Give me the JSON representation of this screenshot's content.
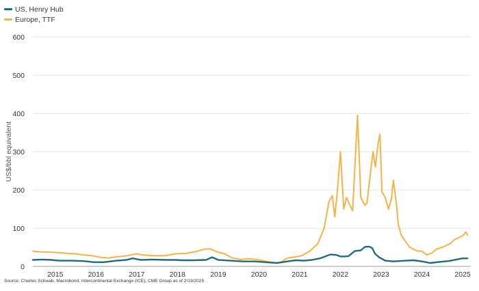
{
  "chart_data": {
    "type": "line",
    "ylabel": "US$/bbl equivalent",
    "ylim": [
      0,
      600
    ],
    "y_ticks": [
      "0",
      "100",
      "200",
      "300",
      "400",
      "500",
      "600"
    ],
    "x_ticks": [
      "2015",
      "2016",
      "2017",
      "2018",
      "2019",
      "2020",
      "2021",
      "2022",
      "2023",
      "2024",
      "2025"
    ],
    "grid": "horizontal",
    "legend_position": "top-left",
    "series": [
      {
        "name": "US, Henry Hub",
        "color": "#1f6b7c",
        "points": [
          [
            2014.45,
            17
          ],
          [
            2014.7,
            18
          ],
          [
            2014.9,
            17
          ],
          [
            2015.1,
            15
          ],
          [
            2015.4,
            15
          ],
          [
            2015.7,
            14
          ],
          [
            2015.95,
            11
          ],
          [
            2016.2,
            11
          ],
          [
            2016.5,
            15
          ],
          [
            2016.75,
            17
          ],
          [
            2016.9,
            21
          ],
          [
            2017.1,
            17
          ],
          [
            2017.4,
            18
          ],
          [
            2017.7,
            17
          ],
          [
            2017.95,
            17
          ],
          [
            2018.1,
            16
          ],
          [
            2018.4,
            16
          ],
          [
            2018.7,
            17
          ],
          [
            2018.85,
            24
          ],
          [
            2019.0,
            17
          ],
          [
            2019.3,
            15
          ],
          [
            2019.6,
            13
          ],
          [
            2019.9,
            13
          ],
          [
            2020.15,
            11
          ],
          [
            2020.45,
            9
          ],
          [
            2020.7,
            13
          ],
          [
            2020.9,
            16
          ],
          [
            2021.1,
            15
          ],
          [
            2021.3,
            17
          ],
          [
            2021.5,
            21
          ],
          [
            2021.75,
            31
          ],
          [
            2021.9,
            30
          ],
          [
            2022.0,
            26
          ],
          [
            2022.1,
            26
          ],
          [
            2022.2,
            27
          ],
          [
            2022.35,
            40
          ],
          [
            2022.5,
            42
          ],
          [
            2022.6,
            51
          ],
          [
            2022.7,
            52
          ],
          [
            2022.78,
            48
          ],
          [
            2022.85,
            33
          ],
          [
            2022.95,
            24
          ],
          [
            2023.1,
            15
          ],
          [
            2023.3,
            13
          ],
          [
            2023.6,
            15
          ],
          [
            2023.8,
            16
          ],
          [
            2024.0,
            13
          ],
          [
            2024.2,
            9
          ],
          [
            2024.45,
            12
          ],
          [
            2024.65,
            14
          ],
          [
            2024.85,
            18
          ],
          [
            2025.0,
            21
          ],
          [
            2025.12,
            21
          ]
        ]
      },
      {
        "name": "Europe, TTF",
        "color": "#f5b245",
        "points": [
          [
            2014.45,
            40
          ],
          [
            2014.65,
            38
          ],
          [
            2014.9,
            37
          ],
          [
            2015.1,
            36
          ],
          [
            2015.3,
            34
          ],
          [
            2015.5,
            33
          ],
          [
            2015.7,
            30
          ],
          [
            2015.9,
            28
          ],
          [
            2016.1,
            24
          ],
          [
            2016.3,
            22
          ],
          [
            2016.5,
            25
          ],
          [
            2016.7,
            27
          ],
          [
            2016.85,
            30
          ],
          [
            2017.0,
            33
          ],
          [
            2017.15,
            30
          ],
          [
            2017.4,
            28
          ],
          [
            2017.7,
            28
          ],
          [
            2017.95,
            33
          ],
          [
            2018.2,
            34
          ],
          [
            2018.5,
            40
          ],
          [
            2018.65,
            45
          ],
          [
            2018.8,
            46
          ],
          [
            2018.95,
            39
          ],
          [
            2019.15,
            33
          ],
          [
            2019.35,
            22
          ],
          [
            2019.55,
            18
          ],
          [
            2019.75,
            20
          ],
          [
            2019.95,
            18
          ],
          [
            2020.15,
            14
          ],
          [
            2020.4,
            9
          ],
          [
            2020.55,
            12
          ],
          [
            2020.7,
            22
          ],
          [
            2020.9,
            25
          ],
          [
            2021.05,
            28
          ],
          [
            2021.25,
            40
          ],
          [
            2021.45,
            60
          ],
          [
            2021.6,
            100
          ],
          [
            2021.72,
            170
          ],
          [
            2021.8,
            185
          ],
          [
            2021.86,
            130
          ],
          [
            2021.92,
            190
          ],
          [
            2022.0,
            300
          ],
          [
            2022.08,
            150
          ],
          [
            2022.15,
            180
          ],
          [
            2022.3,
            145
          ],
          [
            2022.42,
            395
          ],
          [
            2022.5,
            180
          ],
          [
            2022.6,
            160
          ],
          [
            2022.65,
            165
          ],
          [
            2022.72,
            230
          ],
          [
            2022.8,
            300
          ],
          [
            2022.86,
            260
          ],
          [
            2022.92,
            320
          ],
          [
            2022.97,
            345
          ],
          [
            2023.02,
            195
          ],
          [
            2023.1,
            180
          ],
          [
            2023.18,
            150
          ],
          [
            2023.25,
            175
          ],
          [
            2023.3,
            225
          ],
          [
            2023.38,
            158
          ],
          [
            2023.42,
            110
          ],
          [
            2023.5,
            80
          ],
          [
            2023.6,
            65
          ],
          [
            2023.7,
            50
          ],
          [
            2023.8,
            45
          ],
          [
            2023.9,
            40
          ],
          [
            2024.0,
            40
          ],
          [
            2024.12,
            30
          ],
          [
            2024.25,
            35
          ],
          [
            2024.35,
            45
          ],
          [
            2024.5,
            50
          ],
          [
            2024.6,
            55
          ],
          [
            2024.7,
            60
          ],
          [
            2024.8,
            70
          ],
          [
            2024.9,
            75
          ],
          [
            2025.0,
            80
          ],
          [
            2025.08,
            90
          ],
          [
            2025.12,
            82
          ]
        ]
      }
    ]
  },
  "source": "Source: Charles Schwab, Macrobond, Intercontinental Exchange (ICE), CME Group as of 2/19/2025"
}
